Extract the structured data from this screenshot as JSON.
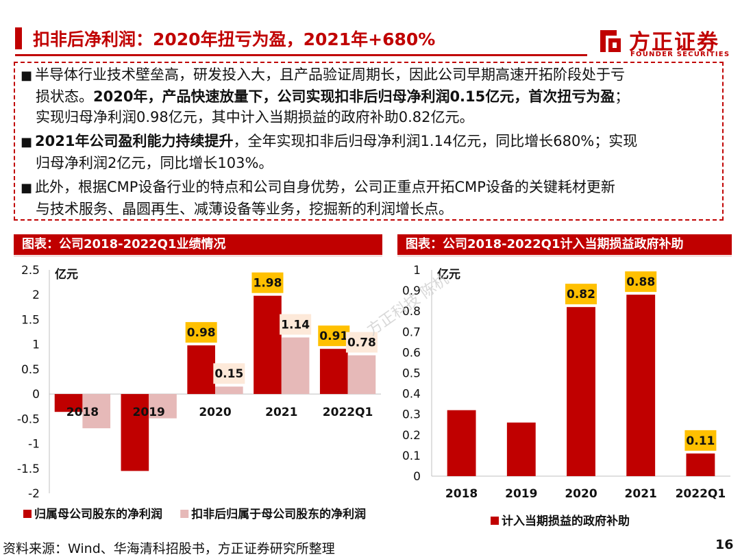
{
  "header": {
    "title": "扣非后净利润：2020年扭亏为盈，2021年+680%",
    "logo_cn": "方正证券",
    "logo_en": "FOUNDER SECURITIES"
  },
  "bullets": [
    {
      "l1": "半导体行业技术壁垒高，研发投入大，且产品验证周期长，因此公司早期高速开拓阶段处于亏",
      "l2a": "损状态。",
      "l2b": "2020年，产品快速放量下，公司实现扣非后归母净利润0.15亿元，首次扭亏为盈",
      "l2c": "；",
      "l3": "实现归母净利润0.98亿元，其中计入当期损益的政府补助0.82亿元。"
    },
    {
      "l1a": "2021年公司盈利能力持续提升",
      "l1b": "，全年实现扣非后归母净利润1.14亿元，同比增长680%；实现",
      "l2": "归母净利润2亿元，同比增长103%。"
    },
    {
      "l1": "此外，根据CMP设备行业的特点和公司自身优势，公司正重点开拓CMP设备的关键耗材更新",
      "l2": "与技术服务、晶圆再生、减薄设备等业务，挖掘新的利润增长点。"
    }
  ],
  "bullet_symbol": "■",
  "left_panel_title": "图表：公司2018-2022Q1业绩情况",
  "right_panel_title": "图表：公司2018-2022Q1计入当期损益政府补助",
  "watermark": "方正科技 陈杭",
  "footer": {
    "source": "资料来源：Wind、华海清科招股书，方正证券研究所整理",
    "page": "16"
  },
  "colors": {
    "brand": "#c00000",
    "series_light": "#e6b9b8",
    "label_bg": "#ffc000",
    "label_bg_light": "#fde9d9"
  },
  "chart_data": [
    {
      "type": "bar",
      "unit_label": "亿元",
      "categories": [
        "2018",
        "2019",
        "2020",
        "2021",
        "2022Q1"
      ],
      "series": [
        {
          "name": "归属母公司股东的净利润",
          "values": [
            -0.36,
            -1.55,
            0.98,
            1.98,
            0.91
          ],
          "color": "#c00000"
        },
        {
          "name": "扣非后归属于母公司股东的净利润",
          "values": [
            -0.69,
            -0.49,
            0.15,
            1.14,
            0.78
          ],
          "color": "#e6b9b8"
        }
      ],
      "data_labels": [
        {
          "category": "2020",
          "series": 0,
          "text": "0.98"
        },
        {
          "category": "2020",
          "series": 1,
          "text": "0.15"
        },
        {
          "category": "2021",
          "series": 0,
          "text": "1.98"
        },
        {
          "category": "2021",
          "series": 1,
          "text": "1.14"
        },
        {
          "category": "2022Q1",
          "series": 0,
          "text": "0.91"
        },
        {
          "category": "2022Q1",
          "series": 1,
          "text": "0.78"
        }
      ],
      "ylim": [
        -2,
        2.5
      ],
      "yticks": [
        "2.5",
        "2",
        "1.5",
        "1",
        "0.5",
        "0",
        "-0.5",
        "-1",
        "-1.5",
        "-2"
      ],
      "ytick_values": [
        2.5,
        2,
        1.5,
        1,
        0.5,
        0,
        -0.5,
        -1,
        -1.5,
        -2
      ],
      "grid": false,
      "legend_position": "bottom"
    },
    {
      "type": "bar",
      "unit_label": "亿元",
      "categories": [
        "2018",
        "2019",
        "2020",
        "2021",
        "2022Q1"
      ],
      "series": [
        {
          "name": "计入当期损益的政府补助",
          "values": [
            0.32,
            0.26,
            0.82,
            0.88,
            0.11
          ],
          "color": "#c00000"
        }
      ],
      "data_labels": [
        {
          "category": "2020",
          "series": 0,
          "text": "0.82"
        },
        {
          "category": "2021",
          "series": 0,
          "text": "0.88"
        },
        {
          "category": "2022Q1",
          "series": 0,
          "text": "0.11"
        }
      ],
      "ylim": [
        0,
        1
      ],
      "yticks": [
        "1",
        "0.9",
        "0.8",
        "0.7",
        "0.6",
        "0.5",
        "0.4",
        "0.3",
        "0.2",
        "0.1",
        "0"
      ],
      "ytick_values": [
        1,
        0.9,
        0.8,
        0.7,
        0.6,
        0.5,
        0.4,
        0.3,
        0.2,
        0.1,
        0
      ],
      "grid": false,
      "legend_position": "bottom"
    }
  ]
}
